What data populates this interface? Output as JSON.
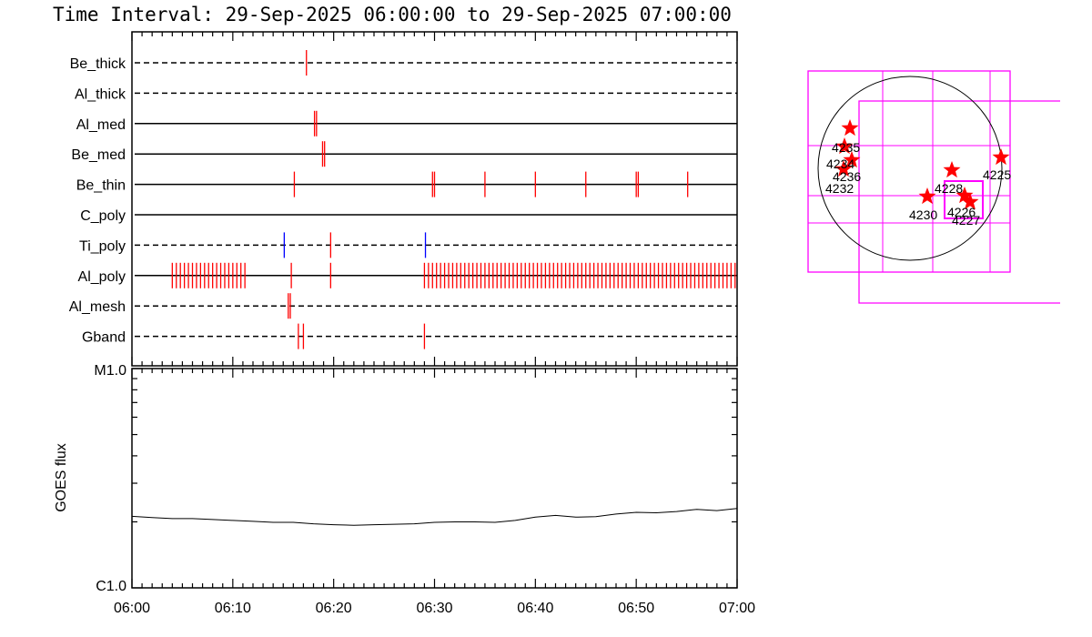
{
  "header": {
    "title": "Time Interval: 29-Sep-2025 06:00:00 to 29-Sep-2025 07:00:00"
  },
  "chart_data": [
    {
      "type": "event_timeline",
      "x_range_min": [
        0,
        60
      ],
      "xtick_labels": [
        "06:00",
        "06:10",
        "06:20",
        "06:30",
        "06:40",
        "06:50",
        "07:00"
      ],
      "rows": [
        {
          "label": "Be_thick",
          "line": "dashed",
          "events": [
            {
              "t": [
                17.3
              ],
              "color": "red"
            }
          ]
        },
        {
          "label": "Al_thick",
          "line": "dashed",
          "events": []
        },
        {
          "label": "Al_med",
          "line": "solid",
          "events": [
            {
              "t": [
                18.1,
                18.3
              ],
              "color": "red"
            }
          ]
        },
        {
          "label": "Be_med",
          "line": "solid",
          "events": [
            {
              "t": [
                18.9,
                19.1
              ],
              "color": "red"
            }
          ]
        },
        {
          "label": "Be_thin",
          "line": "solid",
          "events": [
            {
              "t": [
                16.1,
                29.8,
                30.0,
                35.0,
                40.0,
                45.0,
                50.0,
                50.2,
                55.1
              ],
              "color": "red"
            }
          ]
        },
        {
          "label": "C_poly",
          "line": "solid",
          "events": []
        },
        {
          "label": "Ti_poly",
          "line": "dashed",
          "events": [
            {
              "t": [
                15.1
              ],
              "color": "blue"
            },
            {
              "t": [
                29.1
              ],
              "color": "blue"
            },
            {
              "t": [
                19.7
              ],
              "color": "red"
            }
          ]
        },
        {
          "label": "Al_poly",
          "line": "solid",
          "events": [
            {
              "t": [
                4.0,
                4.4,
                4.8,
                5.2,
                5.6,
                6.0,
                6.4,
                6.8,
                7.2,
                7.6,
                8.0,
                8.4,
                8.8,
                9.2,
                9.6,
                10.0,
                10.4,
                10.8,
                11.2
              ],
              "color": "red"
            },
            {
              "t": [
                15.8,
                19.7
              ],
              "color": "red"
            },
            {
              "t": [
                29.0,
                29.4,
                29.8,
                30.2,
                30.6,
                31.0,
                31.4,
                31.8,
                32.2,
                32.6,
                33.0,
                33.4,
                33.8,
                34.2,
                34.6,
                35.0,
                35.4,
                35.8,
                36.2,
                36.6,
                37.0,
                37.4,
                37.8,
                38.2,
                38.6,
                39.0,
                39.4,
                39.8,
                40.2,
                40.6,
                41.0,
                41.4,
                41.8,
                42.2,
                42.6,
                43.0,
                43.4,
                43.8,
                44.2,
                44.6,
                45.0,
                45.4,
                45.8,
                46.2,
                46.6,
                47.0,
                47.4,
                47.8,
                48.2,
                48.6,
                49.0,
                49.4,
                49.8,
                50.2,
                50.6,
                51.0,
                51.4,
                51.8,
                52.2,
                52.6,
                53.0,
                53.4,
                53.8,
                54.2,
                54.6,
                55.0,
                55.4,
                55.8,
                56.2,
                56.6,
                57.0,
                57.4,
                57.8,
                58.2,
                58.6,
                59.0,
                59.4,
                59.8
              ],
              "color": "red"
            }
          ]
        },
        {
          "label": "Al_mesh",
          "line": "dashed",
          "events": [
            {
              "t": [
                15.5,
                15.7
              ],
              "color": "red"
            }
          ]
        },
        {
          "label": "Gband",
          "line": "dashed",
          "events": [
            {
              "t": [
                16.5,
                17.0,
                29.0
              ],
              "color": "red"
            }
          ]
        }
      ]
    },
    {
      "type": "line",
      "ylabel": "GOES flux",
      "y_scale": "log",
      "ytick_labels": [
        "M1.0",
        "C1.0"
      ],
      "ylim_w_m2": [
        1e-06,
        1e-05
      ],
      "xlim_min": [
        0,
        60
      ],
      "xtick_labels": [
        "06:00",
        "06:10",
        "06:20",
        "06:30",
        "06:40",
        "06:50",
        "07:00"
      ],
      "series": [
        {
          "x_min": [
            0,
            2,
            4,
            6,
            8,
            10,
            12,
            14,
            16,
            18,
            20,
            22,
            24,
            26,
            28,
            30,
            32,
            34,
            36,
            38,
            40,
            42,
            44,
            46,
            48,
            50,
            52,
            54,
            56,
            58,
            60
          ],
          "y_w_m2": [
            2.12e-06,
            2.09e-06,
            2.07e-06,
            2.07e-06,
            2.05e-06,
            2.03e-06,
            2.01e-06,
            1.99e-06,
            1.99e-06,
            1.96e-06,
            1.94e-06,
            1.93e-06,
            1.94e-06,
            1.95e-06,
            1.96e-06,
            1.99e-06,
            2e-06,
            2e-06,
            1.99e-06,
            2.03e-06,
            2.1e-06,
            2.14e-06,
            2.1e-06,
            2.11e-06,
            2.17e-06,
            2.21e-06,
            2.2e-06,
            2.23e-06,
            2.28e-06,
            2.25e-06,
            2.3e-06
          ]
        }
      ]
    },
    {
      "type": "scatter",
      "annotations": [
        "4235",
        "4234",
        "4236",
        "4232",
        "4228",
        "4225",
        "4230",
        "4226",
        "4227"
      ]
    }
  ]
}
